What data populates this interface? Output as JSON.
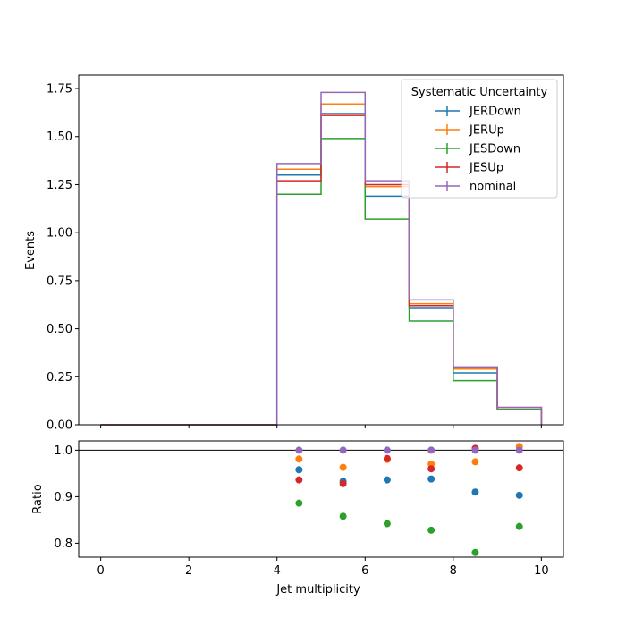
{
  "chart_data": [
    {
      "type": "line",
      "panel": "main",
      "drawstyle": "steps",
      "xlabel": "",
      "ylabel": "Events",
      "xlim": [
        -0.5,
        10.5
      ],
      "ylim": [
        0,
        1.82
      ],
      "bin_edges": [
        0,
        1,
        2,
        3,
        4,
        5,
        6,
        7,
        8,
        9,
        10
      ],
      "x_ticks": [
        0,
        2,
        4,
        6,
        8,
        10
      ],
      "y_ticks": [
        "0.00",
        "0.25",
        "0.50",
        "0.75",
        "1.00",
        "1.25",
        "1.50",
        "1.75"
      ],
      "legend": {
        "title": "Systematic Uncertainty",
        "placement": "top-right"
      },
      "series": [
        {
          "name": "JERDown",
          "color": "#1f77b4",
          "values": [
            0,
            0,
            0,
            0,
            1.3,
            1.62,
            1.19,
            0.61,
            0.27,
            0.08
          ]
        },
        {
          "name": "JERUp",
          "color": "#ff7f0e",
          "values": [
            0,
            0,
            0,
            0,
            1.33,
            1.67,
            1.24,
            0.63,
            0.29,
            0.09
          ]
        },
        {
          "name": "JESDown",
          "color": "#2ca02c",
          "values": [
            0,
            0,
            0,
            0,
            1.2,
            1.49,
            1.07,
            0.54,
            0.23,
            0.08
          ]
        },
        {
          "name": "JESUp",
          "color": "#d62728",
          "values": [
            0,
            0,
            0,
            0,
            1.27,
            1.61,
            1.25,
            0.62,
            0.3,
            0.09
          ]
        },
        {
          "name": "nominal",
          "color": "#9467bd",
          "values": [
            0,
            0,
            0,
            0,
            1.36,
            1.73,
            1.27,
            0.65,
            0.3,
            0.09
          ]
        }
      ]
    },
    {
      "type": "scatter",
      "panel": "ratio",
      "xlabel": "Jet multiplicity",
      "ylabel": "Ratio",
      "xlim": [
        -0.5,
        10.5
      ],
      "ylim": [
        0.77,
        1.02
      ],
      "reference_line": 1.0,
      "x_ticks": [
        0,
        2,
        4,
        6,
        8,
        10
      ],
      "y_ticks": [
        "0.8",
        "0.9",
        "1.0"
      ],
      "x": [
        4.5,
        5.5,
        6.5,
        7.5,
        8.5,
        9.5
      ],
      "series": [
        {
          "name": "JERDown",
          "color": "#1f77b4",
          "values": [
            0.958,
            0.933,
            0.936,
            0.938,
            0.91,
            0.903
          ]
        },
        {
          "name": "JERUp",
          "color": "#ff7f0e",
          "values": [
            0.981,
            0.963,
            0.98,
            0.97,
            0.975,
            1.008
          ]
        },
        {
          "name": "JESDown",
          "color": "#2ca02c",
          "values": [
            0.886,
            0.858,
            0.842,
            0.828,
            0.78,
            0.836
          ]
        },
        {
          "name": "JESUp",
          "color": "#d62728",
          "values": [
            0.936,
            0.928,
            0.982,
            0.96,
            1.004,
            0.962
          ]
        },
        {
          "name": "nominal",
          "color": "#9467bd",
          "values": [
            1.0,
            1.0,
            1.0,
            1.0,
            1.0,
            1.0
          ]
        }
      ]
    }
  ]
}
